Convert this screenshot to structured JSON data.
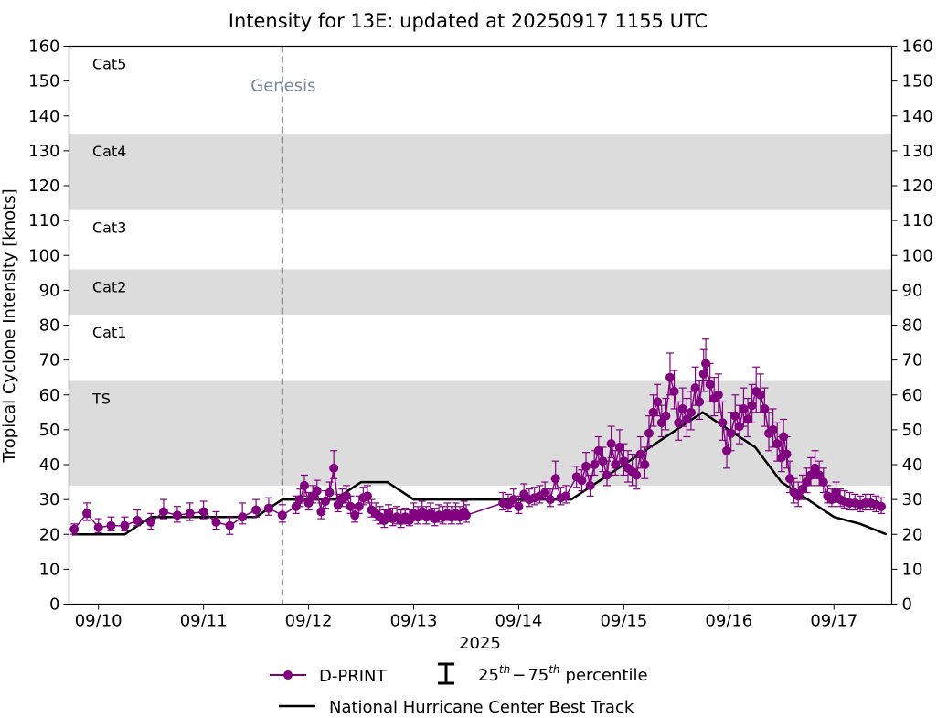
{
  "chart_data": {
    "type": "scatter",
    "title": "Intensity for 13E: updated at 20250917 1155 UTC",
    "xlabel": "2025",
    "ylabel": "Tropical Cyclone Intensity [knots]",
    "ylim": [
      0,
      160
    ],
    "yticks": [
      0,
      10,
      20,
      30,
      40,
      50,
      60,
      70,
      80,
      90,
      100,
      110,
      120,
      130,
      140,
      150,
      160
    ],
    "xlim_days": [
      9.72,
      17.55
    ],
    "xticks": [
      {
        "day": 10,
        "label": "09/10"
      },
      {
        "day": 11,
        "label": "09/11"
      },
      {
        "day": 12,
        "label": "09/12"
      },
      {
        "day": 13,
        "label": "09/13"
      },
      {
        "day": 14,
        "label": "09/14"
      },
      {
        "day": 15,
        "label": "09/15"
      },
      {
        "day": 16,
        "label": "09/16"
      },
      {
        "day": 17,
        "label": "09/17"
      }
    ],
    "categories": [
      {
        "label": "TS",
        "low": 34,
        "high": 64,
        "shaded": true
      },
      {
        "label": "Cat1",
        "low": 64,
        "high": 83,
        "shaded": false
      },
      {
        "label": "Cat2",
        "low": 83,
        "high": 96,
        "shaded": true
      },
      {
        "label": "Cat3",
        "low": 96,
        "high": 113,
        "shaded": false
      },
      {
        "label": "Cat4",
        "low": 113,
        "high": 135,
        "shaded": true
      },
      {
        "label": "Cat5",
        "low": 135,
        "high": 160,
        "shaded": false
      }
    ],
    "genesis": {
      "day": 11.75,
      "label": "Genesis"
    },
    "legend": {
      "position": "bottom",
      "dprint": "D-PRINT",
      "percentile_label_1": "25",
      "percentile_sup_1": "th",
      "percentile_dash": "−",
      "percentile_label_2": "75",
      "percentile_sup_2": "th",
      "percentile_word": "percentile",
      "best_track": "National Hurricane Center Best Track"
    },
    "best_track": {
      "name": "National Hurricane Center Best Track",
      "x": [
        9.75,
        10.25,
        10.5,
        11.0,
        11.5,
        11.75,
        12.0,
        12.25,
        12.5,
        12.75,
        13.0,
        13.25,
        13.5,
        13.75,
        14.0,
        14.25,
        14.5,
        14.75,
        15.0,
        15.25,
        15.5,
        15.75,
        16.0,
        16.25,
        16.5,
        16.75,
        17.0,
        17.25,
        17.5
      ],
      "y": [
        20,
        20,
        25,
        25,
        25,
        30,
        30,
        30,
        35,
        35,
        30,
        30,
        30,
        30,
        30,
        30,
        30,
        35,
        40,
        45,
        50,
        55,
        50,
        45,
        35,
        30,
        25,
        23,
        20
      ]
    },
    "dprint": {
      "name": "D-PRINT",
      "points": [
        [
          9.77,
          21.5,
          1.5,
          1.5
        ],
        [
          9.89,
          26,
          2,
          3
        ],
        [
          10.0,
          22,
          1.5,
          2.5
        ],
        [
          10.12,
          22.5,
          1.5,
          2.5
        ],
        [
          10.25,
          22.5,
          1.5,
          2.5
        ],
        [
          10.37,
          24,
          1.5,
          3
        ],
        [
          10.5,
          23.5,
          2,
          2.5
        ],
        [
          10.62,
          26.5,
          2,
          3.5
        ],
        [
          10.75,
          25.5,
          2,
          2.5
        ],
        [
          10.87,
          26,
          2,
          3
        ],
        [
          11.0,
          26.5,
          2,
          3
        ],
        [
          11.12,
          23.5,
          2,
          3
        ],
        [
          11.25,
          22.5,
          2.5,
          2.5
        ],
        [
          11.37,
          25,
          2,
          4
        ],
        [
          11.5,
          27,
          2,
          3
        ],
        [
          11.62,
          27.5,
          2,
          3
        ],
        [
          11.75,
          25.5,
          2,
          3
        ],
        [
          11.88,
          28,
          2,
          3
        ],
        [
          11.92,
          30,
          2,
          3
        ],
        [
          11.96,
          34,
          3,
          3
        ],
        [
          12.0,
          29,
          2,
          3
        ],
        [
          12.04,
          31,
          2,
          3
        ],
        [
          12.08,
          32.5,
          2.5,
          3
        ],
        [
          12.12,
          26.5,
          2,
          2.5
        ],
        [
          12.16,
          29.5,
          2,
          3
        ],
        [
          12.2,
          32,
          2,
          3
        ],
        [
          12.24,
          39,
          3,
          5
        ],
        [
          12.28,
          28.5,
          2,
          3
        ],
        [
          12.32,
          30,
          2,
          3
        ],
        [
          12.36,
          31,
          2,
          3
        ],
        [
          12.4,
          28,
          2,
          3
        ],
        [
          12.44,
          25.5,
          2,
          3
        ],
        [
          12.48,
          28,
          2,
          3
        ],
        [
          12.52,
          30.5,
          2,
          3
        ],
        [
          12.56,
          31,
          2,
          3
        ],
        [
          12.6,
          27,
          2,
          3
        ],
        [
          12.64,
          26,
          2,
          3
        ],
        [
          12.68,
          25,
          2,
          3
        ],
        [
          12.72,
          24,
          2,
          3
        ],
        [
          12.76,
          26,
          2,
          2.5
        ],
        [
          12.8,
          24.5,
          2,
          3
        ],
        [
          12.84,
          25,
          2,
          3
        ],
        [
          12.88,
          24,
          2,
          3
        ],
        [
          12.92,
          25,
          2,
          2.5
        ],
        [
          12.96,
          24,
          1.5,
          3
        ],
        [
          13.0,
          26,
          2,
          3
        ],
        [
          13.04,
          25,
          2,
          3
        ],
        [
          13.08,
          26.5,
          2,
          3
        ],
        [
          13.12,
          25,
          2,
          3
        ],
        [
          13.16,
          26,
          2,
          3
        ],
        [
          13.2,
          24.5,
          2,
          3
        ],
        [
          13.24,
          25.5,
          2,
          3
        ],
        [
          13.28,
          25,
          2,
          3
        ],
        [
          13.32,
          26,
          2,
          3
        ],
        [
          13.36,
          25,
          2,
          3
        ],
        [
          13.4,
          26,
          2,
          3
        ],
        [
          13.44,
          25,
          2,
          3
        ],
        [
          13.48,
          26.5,
          2,
          3
        ],
        [
          13.5,
          25.5,
          2,
          3
        ],
        [
          13.85,
          29,
          2,
          3
        ],
        [
          13.9,
          28.5,
          2,
          3
        ],
        [
          13.95,
          30,
          2,
          3
        ],
        [
          14.0,
          28,
          2,
          3
        ],
        [
          14.05,
          31.5,
          2,
          3
        ],
        [
          14.1,
          30,
          2,
          3
        ],
        [
          14.15,
          30.5,
          2,
          3
        ],
        [
          14.2,
          31,
          2,
          3
        ],
        [
          14.25,
          32,
          2,
          3
        ],
        [
          14.3,
          30,
          2,
          3
        ],
        [
          14.35,
          36,
          3,
          5
        ],
        [
          14.4,
          30.5,
          2,
          3
        ],
        [
          14.45,
          31,
          2,
          3
        ],
        [
          14.55,
          36.5,
          3,
          3
        ],
        [
          14.6,
          35.5,
          3,
          3
        ],
        [
          14.64,
          39.5,
          3,
          4
        ],
        [
          14.68,
          34,
          3,
          3
        ],
        [
          14.72,
          40,
          3,
          4
        ],
        [
          14.76,
          44,
          3,
          4
        ],
        [
          14.8,
          41,
          3,
          4
        ],
        [
          14.84,
          37,
          3,
          4
        ],
        [
          14.88,
          46,
          4,
          5
        ],
        [
          14.92,
          40,
          3,
          4
        ],
        [
          14.96,
          45,
          4,
          5
        ],
        [
          15.0,
          41,
          4,
          5
        ],
        [
          15.04,
          39,
          4,
          5
        ],
        [
          15.08,
          38,
          4,
          5
        ],
        [
          15.12,
          37,
          4,
          5
        ],
        [
          15.16,
          43,
          4,
          5
        ],
        [
          15.2,
          40,
          4,
          5
        ],
        [
          15.24,
          49,
          4,
          5
        ],
        [
          15.28,
          55,
          4,
          5
        ],
        [
          15.32,
          58,
          4,
          5
        ],
        [
          15.36,
          52,
          4,
          5
        ],
        [
          15.4,
          54,
          4,
          5
        ],
        [
          15.44,
          65,
          5,
          7
        ],
        [
          15.48,
          61,
          5,
          6
        ],
        [
          15.52,
          52,
          5,
          6
        ],
        [
          15.56,
          56,
          5,
          6
        ],
        [
          15.6,
          53,
          5,
          6
        ],
        [
          15.64,
          55,
          5,
          6
        ],
        [
          15.68,
          62,
          5,
          6
        ],
        [
          15.72,
          58,
          5,
          6
        ],
        [
          15.76,
          66,
          5,
          7
        ],
        [
          15.78,
          69,
          5,
          7
        ],
        [
          15.82,
          63,
          5,
          6
        ],
        [
          15.86,
          59,
          5,
          6
        ],
        [
          15.9,
          60,
          5,
          6
        ],
        [
          15.94,
          52,
          5,
          6
        ],
        [
          15.98,
          44,
          5,
          6
        ],
        [
          16.02,
          49,
          5,
          6
        ],
        [
          16.06,
          54,
          5,
          6
        ],
        [
          16.1,
          51,
          5,
          6
        ],
        [
          16.14,
          56,
          5,
          6
        ],
        [
          16.18,
          53,
          5,
          6
        ],
        [
          16.22,
          57,
          5,
          6
        ],
        [
          16.26,
          61,
          6,
          7
        ],
        [
          16.3,
          60,
          5,
          6
        ],
        [
          16.34,
          56,
          5,
          6
        ],
        [
          16.38,
          49,
          5,
          6
        ],
        [
          16.42,
          50,
          5,
          6
        ],
        [
          16.46,
          46,
          5,
          6
        ],
        [
          16.5,
          42,
          4,
          6
        ],
        [
          16.52,
          48,
          4,
          5
        ],
        [
          16.55,
          43,
          4,
          5
        ],
        [
          16.58,
          36,
          4,
          5
        ],
        [
          16.62,
          32,
          3,
          4
        ],
        [
          16.66,
          31,
          3,
          4
        ],
        [
          16.7,
          33,
          3,
          4
        ],
        [
          16.74,
          35,
          3,
          4
        ],
        [
          16.78,
          37,
          3,
          5
        ],
        [
          16.82,
          39,
          3,
          5
        ],
        [
          16.86,
          37,
          3,
          4
        ],
        [
          16.9,
          35,
          3,
          4
        ],
        [
          16.94,
          31,
          2,
          3
        ],
        [
          16.98,
          30,
          2,
          3
        ],
        [
          17.02,
          32,
          2,
          3
        ],
        [
          17.06,
          30,
          2,
          3
        ],
        [
          17.1,
          29.5,
          2,
          3
        ],
        [
          17.15,
          29,
          2,
          3
        ],
        [
          17.2,
          29,
          2,
          2.5
        ],
        [
          17.25,
          28.5,
          2,
          2.5
        ],
        [
          17.3,
          29,
          2,
          2.5
        ],
        [
          17.35,
          29,
          2,
          2.5
        ],
        [
          17.4,
          28.5,
          2,
          2.5
        ],
        [
          17.45,
          28,
          2,
          2.5
        ]
      ]
    }
  },
  "colors": {
    "dprint": "#800080",
    "best_track": "#000000",
    "band": "#dcdcdc",
    "genesis": "#778899",
    "genesis_line": "#808080"
  }
}
